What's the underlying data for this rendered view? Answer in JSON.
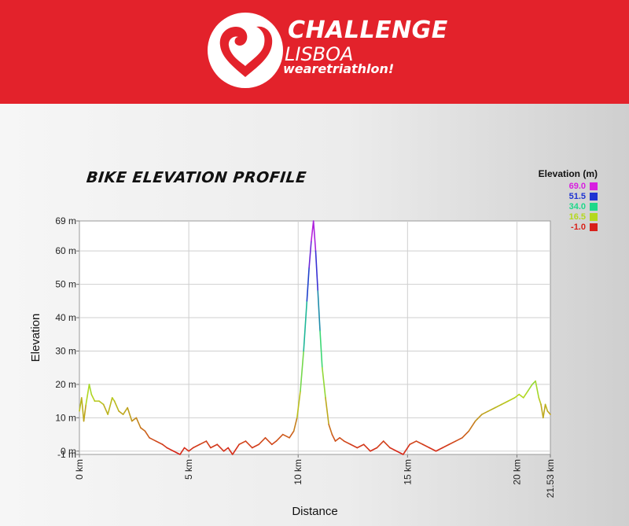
{
  "header": {
    "brand_line1": "CHALLENGE",
    "brand_line2": "LISBOA",
    "brand_line3": "wearetriathlon!",
    "background": "#e3222b"
  },
  "chart_data": {
    "type": "line",
    "title": "BIKE ELEVATION PROFILE",
    "xlabel": "Distance",
    "ylabel": "Elevation",
    "xlim": [
      0,
      21.53
    ],
    "ylim": [
      -1,
      69
    ],
    "x_ticks": [
      0,
      5,
      10,
      15,
      20,
      21.53
    ],
    "x_tick_labels": [
      "0 km",
      "5 km",
      "10 km",
      "15 km",
      "20 km",
      "21.53 km"
    ],
    "y_ticks": [
      -1,
      0,
      10,
      20,
      30,
      40,
      50,
      60,
      69
    ],
    "y_tick_labels": [
      "-1 m",
      "0 m",
      "10 m",
      "20 m",
      "30 m",
      "40 m",
      "50 m",
      "60 m",
      "69 m"
    ],
    "grid": true,
    "legend": {
      "title": "Elevation (m)",
      "placement": "top-right",
      "entries": [
        {
          "value": "69.0",
          "color": "#d81ee0"
        },
        {
          "value": "51.5",
          "color": "#1f34d2"
        },
        {
          "value": "34.0",
          "color": "#1fd88a"
        },
        {
          "value": "16.5",
          "color": "#b4d81e"
        },
        {
          "value": "-1.0",
          "color": "#d8201a"
        }
      ]
    },
    "series": [
      {
        "x": [
          0,
          0.1,
          0.2,
          0.3,
          0.45,
          0.55,
          0.7,
          0.9,
          1.1,
          1.3,
          1.5,
          1.6,
          1.8,
          2.0,
          2.2,
          2.4,
          2.6,
          2.8,
          3.0,
          3.2,
          3.5,
          3.8,
          4.0,
          4.3,
          4.6,
          4.8,
          5.0,
          5.2,
          5.5,
          5.8,
          6.0,
          6.3,
          6.6,
          6.8,
          7.0,
          7.3,
          7.6,
          7.9,
          8.2,
          8.5,
          8.8,
          9.0,
          9.3,
          9.6,
          9.8,
          9.95,
          10.1,
          10.25,
          10.4,
          10.5,
          10.6,
          10.7,
          10.8,
          10.9,
          11.0,
          11.1,
          11.25,
          11.4,
          11.55,
          11.7,
          11.9,
          12.1,
          12.4,
          12.7,
          13.0,
          13.3,
          13.6,
          13.9,
          14.2,
          14.5,
          14.8,
          15.1,
          15.4,
          15.7,
          16.0,
          16.3,
          16.6,
          16.9,
          17.2,
          17.5,
          17.8,
          18.1,
          18.4,
          18.7,
          19.0,
          19.3,
          19.6,
          19.9,
          20.1,
          20.3,
          20.5,
          20.7,
          20.85,
          21.0,
          21.1,
          21.2,
          21.3,
          21.4,
          21.53
        ],
        "y": [
          12,
          16,
          9,
          14,
          20,
          17,
          15,
          15,
          14,
          11,
          16,
          15,
          12,
          11,
          13,
          9,
          10,
          7,
          6,
          4,
          3,
          2,
          1,
          0,
          -1,
          1,
          0,
          1,
          2,
          3,
          1,
          2,
          0,
          1,
          -1,
          2,
          3,
          1,
          2,
          4,
          2,
          3,
          5,
          4,
          6,
          10,
          18,
          30,
          45,
          55,
          63,
          69,
          60,
          48,
          36,
          25,
          16,
          8,
          5,
          3,
          4,
          3,
          2,
          1,
          2,
          0,
          1,
          3,
          1,
          0,
          -1,
          2,
          3,
          2,
          1,
          0,
          1,
          2,
          3,
          4,
          6,
          9,
          11,
          12,
          13,
          14,
          15,
          16,
          17,
          16,
          18,
          20,
          21,
          16,
          14,
          10,
          14,
          12,
          11
        ]
      }
    ]
  }
}
